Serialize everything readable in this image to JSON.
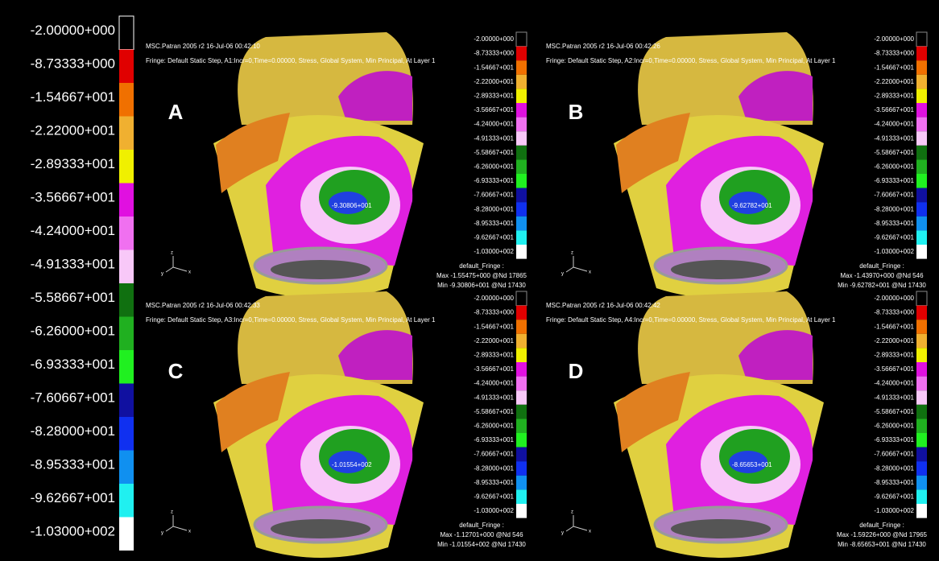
{
  "legend": {
    "labels": [
      "-2.00000+000",
      "-8.73333+000",
      "-1.54667+001",
      "-2.22000+001",
      "-2.89333+001",
      "-3.56667+001",
      "-4.24000+001",
      "-4.91333+001",
      "-5.58667+001",
      "-6.26000+001",
      "-6.93333+001",
      "-7.60667+001",
      "-8.28000+001",
      "-8.95333+001",
      "-9.62667+001",
      "-1.03000+002"
    ],
    "colors": [
      "#000000",
      "#e00000",
      "#f07000",
      "#f0b030",
      "#f0f000",
      "#e010e0",
      "#f070f0",
      "#f8c8f8",
      "#107010",
      "#20b020",
      "#20f020",
      "#1010a0",
      "#1030f0",
      "#1090f0",
      "#20f0f0",
      "#ffffff"
    ]
  },
  "axis_triad": [
    "z",
    "y",
    "x"
  ],
  "panels": [
    {
      "letter": "A",
      "timestamp": "MSC.Patran 2005 r2 16-Jul-06 00:42:10",
      "fringe": "Fringe: Default Static Step, A1:Incr=0,Time=0.00000, Stress, Global System, Min Principal, At Layer 1",
      "probe": "-9.30806+001",
      "footer": [
        "default_Fringe :",
        "Max -1.55475+000 @Nd 17865",
        "Min -9.30806+001 @Nd 17430"
      ]
    },
    {
      "letter": "B",
      "timestamp": "MSC.Patran 2005 r2 16-Jul-06 00:42:26",
      "fringe": "Fringe: Default Static Step, A2:Incr=0,Time=0.00000, Stress, Global System, Min Principal, At Layer 1",
      "probe": "-9.62782+001",
      "footer": [
        "default_Fringe :",
        "Max -1.43970+000 @Nd 546",
        "Min -9.62782+001 @Nd 17430"
      ]
    },
    {
      "letter": "C",
      "timestamp": "MSC.Patran 2005 r2 16-Jul-06 00:42:33",
      "fringe": "Fringe: Default Static Step, A3:Incr=0,Time=0.00000, Stress, Global System, Min Principal, At Layer 1",
      "probe": "-1.01554+002",
      "footer": [
        "default_Fringe :",
        "Max -1.12701+000 @Nd 546",
        "Min -1.01554+002 @Nd 17430"
      ]
    },
    {
      "letter": "D",
      "timestamp": "MSC.Patran 2005 r2 16-Jul-06 00:42:42",
      "fringe": "Fringe: Default Static Step, A4:Incr=0,Time=0.00000, Stress, Global System, Min Principal, At Layer 1",
      "probe": "-8.65653+001",
      "footer": [
        "default_Fringe :",
        "Max -1.59226+000 @Nd 17965",
        "Min -8.65653+001 @Nd 17430"
      ]
    }
  ]
}
